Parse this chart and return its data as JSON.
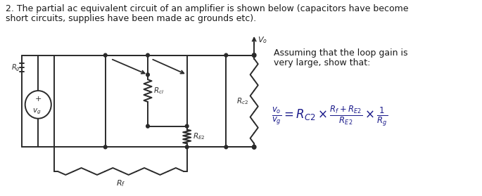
{
  "title_line1": "2. The partial ac equivalent circuit of an amplifier is shown below (capacitors have become",
  "title_line2": "short circuits, supplies have been made ac grounds etc).",
  "assumption_line1": "Assuming that the loop gain is",
  "assumption_line2": "very large, show that:",
  "formula_text": "$\\frac{v_o}{v_g} = R_{C2} \\times \\frac{R_f + R_{E2}}{R_{E2}} \\times \\frac{1}{R_g}$",
  "bg_color": "#ffffff",
  "text_color": "#1a1a2e",
  "formula_color": "#1a1a8a",
  "title_fontsize": 9.0,
  "formula_fontsize": 12,
  "circuit_color": "#2a2a2a",
  "lw": 1.4
}
